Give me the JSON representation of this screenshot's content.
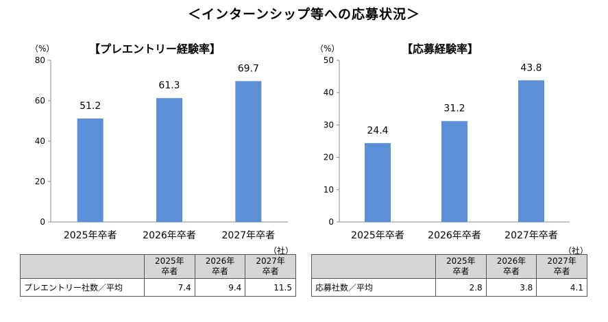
{
  "main_title": "＜インターンシップ等への応募状況＞",
  "left_chart": {
    "title": "【プレエントリー経験率】",
    "unit": "（%）"
  },
  "right_chart": {
    "title": "【応募経験率】",
    "unit": "（%）"
  },
  "chart_data": [
    {
      "type": "bar",
      "title": "【プレエントリー経験率】",
      "ylabel": "（%）",
      "categories": [
        "2025年卒者",
        "2026年卒者",
        "2027年卒者"
      ],
      "values": [
        51.2,
        61.3,
        69.7
      ],
      "labels": [
        "51.2",
        "61.3",
        "69.7"
      ],
      "ylim": [
        0,
        80
      ],
      "yticks": [
        0,
        20,
        40,
        60,
        80
      ],
      "color": "#5b8fd6",
      "grid": false
    },
    {
      "type": "bar",
      "title": "【応募経験率】",
      "ylabel": "（%）",
      "categories": [
        "2025年卒者",
        "2026年卒者",
        "2027年卒者"
      ],
      "values": [
        24.4,
        31.2,
        43.8
      ],
      "labels": [
        "24.4",
        "31.2",
        "43.8"
      ],
      "ylim": [
        0,
        50
      ],
      "yticks": [
        0,
        10,
        20,
        30,
        40,
        50
      ],
      "color": "#5b8fd6",
      "grid": false
    }
  ],
  "left_table": {
    "unit": "（社）",
    "headers": [
      {
        "top": "2025年",
        "bottom": "卒者"
      },
      {
        "top": "2026年",
        "bottom": "卒者"
      },
      {
        "top": "2027年",
        "bottom": "卒者"
      }
    ],
    "row_label": "プレエントリー社数／平均",
    "values": [
      "7.4",
      "9.4",
      "11.5"
    ]
  },
  "right_table": {
    "unit": "（社）",
    "headers": [
      {
        "top": "2025年",
        "bottom": "卒者"
      },
      {
        "top": "2026年",
        "bottom": "卒者"
      },
      {
        "top": "2027年",
        "bottom": "卒者"
      }
    ],
    "row_label": "応募社数／平均",
    "values": [
      "2.8",
      "3.8",
      "4.1"
    ]
  }
}
